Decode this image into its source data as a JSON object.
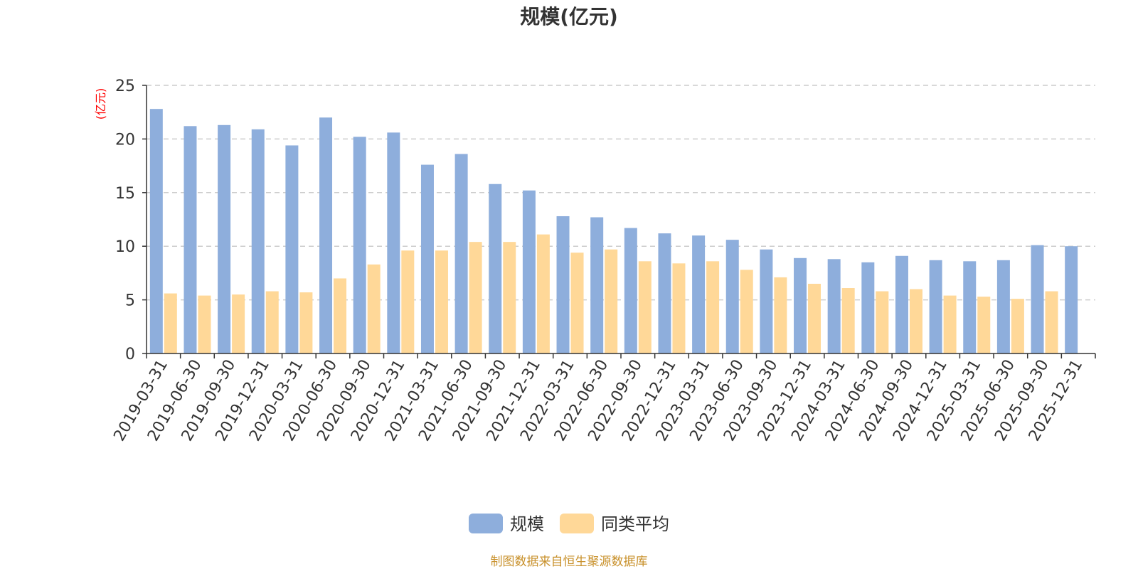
{
  "title": "规模(亿元)",
  "unit_label": "(亿元)",
  "source_note": "制图数据来自恒生聚源数据库",
  "colors": {
    "scale": "#8eaedc",
    "avg": "#ffd898",
    "title": "#333333",
    "unit": "#ff0000",
    "source": "#c8902a",
    "grid": "#cccccc",
    "axis": "#333333"
  },
  "chart_data": {
    "type": "bar",
    "title": "规模(亿元)",
    "ylabel": "(亿元)",
    "xlabel": "",
    "ylim": [
      0,
      25
    ],
    "yticks": [
      0,
      5,
      10,
      15,
      20,
      25
    ],
    "grid": true,
    "legend_position": "bottom",
    "categories": [
      "2019-03-31",
      "2019-06-30",
      "2019-09-30",
      "2019-12-31",
      "2020-03-31",
      "2020-06-30",
      "2020-09-30",
      "2020-12-31",
      "2021-03-31",
      "2021-06-30",
      "2021-09-30",
      "2021-12-31",
      "2022-03-31",
      "2022-06-30",
      "2022-09-30",
      "2022-12-31",
      "2023-03-31",
      "2023-06-30",
      "2023-09-30",
      "2023-12-31",
      "2024-03-31",
      "2024-06-30",
      "2024-09-30",
      "2024-12-31",
      "2025-03-31",
      "2025-06-30",
      "2025-09-30",
      "2025-12-31"
    ],
    "series": [
      {
        "name": "规模",
        "color": "#8eaedc",
        "values": [
          22.8,
          21.2,
          21.3,
          20.9,
          19.4,
          22.0,
          20.2,
          20.6,
          17.6,
          18.6,
          15.8,
          15.2,
          12.8,
          12.7,
          11.7,
          11.2,
          11.0,
          10.6,
          9.7,
          8.9,
          8.8,
          8.5,
          9.1,
          8.7,
          8.6,
          8.7,
          10.1,
          10.0
        ]
      },
      {
        "name": "同类平均",
        "color": "#ffd898",
        "values": [
          5.6,
          5.4,
          5.5,
          5.8,
          5.7,
          7.0,
          8.3,
          9.6,
          9.6,
          10.4,
          10.4,
          11.1,
          9.4,
          9.7,
          8.6,
          8.4,
          8.6,
          7.8,
          7.1,
          6.5,
          6.1,
          5.8,
          6.0,
          5.4,
          5.3,
          5.1,
          5.8,
          null
        ]
      }
    ]
  }
}
